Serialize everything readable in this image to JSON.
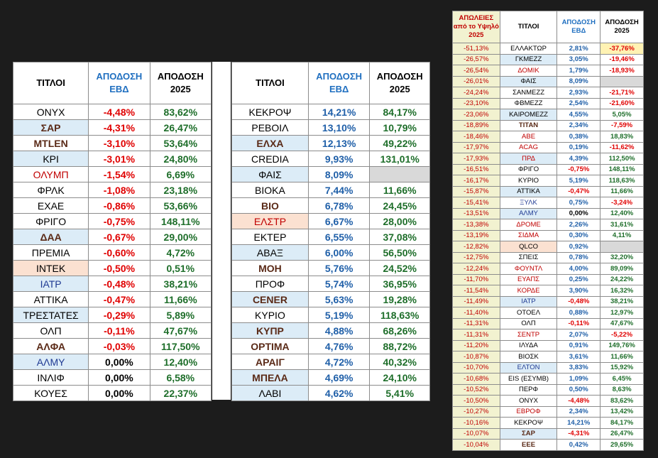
{
  "colors": {
    "background": "#1c1c1c",
    "header_blue": "#1f6fc0",
    "negative": "#e00000",
    "positive_green": "#1e6e2a",
    "positive_blue": "#1f5fa8",
    "row_blue": "#dcecf7",
    "row_peach": "#fbe1d1",
    "empty_grey": "#d9d9d9"
  },
  "left_table": {
    "headers": [
      "ΤΙΤΛΟΙ",
      "ΑΠΟΔΟΣΗ ΕΒΔ",
      "ΑΠΟΔΟΣΗ 2025"
    ],
    "rows": [
      {
        "name": "ΟΝΥΧ",
        "style": "plain",
        "wk": "-4,48%",
        "wk_style": "neg",
        "ytd": "83,62%"
      },
      {
        "name": "ΣΑΡ",
        "style": "boldblue",
        "wk": "-4,31%",
        "wk_style": "neg",
        "ytd": "26,47%"
      },
      {
        "name": "ΜΤLΕΝ",
        "style": "bold",
        "wk": "-3,10%",
        "wk_style": "neg",
        "ytd": "53,64%"
      },
      {
        "name": "ΚΡΙ",
        "style": "blue",
        "wk": "-3,01%",
        "wk_style": "neg",
        "ytd": "24,80%"
      },
      {
        "name": "ΟΛΥΜΠ",
        "style": "red",
        "wk": "-1,54%",
        "wk_style": "neg",
        "ytd": "6,69%"
      },
      {
        "name": "ΦΡΛΚ",
        "style": "plain",
        "wk": "-1,08%",
        "wk_style": "neg",
        "ytd": "23,18%"
      },
      {
        "name": "ΕΧΑΕ",
        "style": "plain",
        "wk": "-0,86%",
        "wk_style": "neg",
        "ytd": "53,66%"
      },
      {
        "name": "ΦΡΙΓΟ",
        "style": "plain",
        "wk": "-0,75%",
        "wk_style": "neg",
        "ytd": "148,11%"
      },
      {
        "name": "ΔΑΑ",
        "style": "boldblue",
        "wk": "-0,67%",
        "wk_style": "neg",
        "ytd": "29,00%"
      },
      {
        "name": "ΠΡΕΜΙΑ",
        "style": "plain",
        "wk": "-0,60%",
        "wk_style": "neg",
        "ytd": "4,72%"
      },
      {
        "name": "ΙΝΤΕΚ",
        "style": "peach",
        "wk": "-0,50%",
        "wk_style": "neg",
        "ytd": "0,51%"
      },
      {
        "name": "ΙΑΤΡ",
        "style": "bluetextblue",
        "wk": "-0,48%",
        "wk_style": "neg",
        "ytd": "38,21%"
      },
      {
        "name": "ΑΤΤΙΚΑ",
        "style": "plain",
        "wk": "-0,47%",
        "wk_style": "neg",
        "ytd": "11,66%"
      },
      {
        "name": "ΤΡΕΣΤΑΤΕΣ",
        "style": "blue",
        "wk": "-0,29%",
        "wk_style": "neg",
        "ytd": "5,89%"
      },
      {
        "name": "ΟΛΠ",
        "style": "plain",
        "wk": "-0,11%",
        "wk_style": "neg",
        "ytd": "47,67%"
      },
      {
        "name": "ΑΛΦΑ",
        "style": "bold",
        "wk": "-0,03%",
        "wk_style": "neg",
        "ytd": "117,50%"
      },
      {
        "name": "ΑΛΜΥ",
        "style": "bluetextblue",
        "wk": "0,00%",
        "wk_style": "zero",
        "ytd": "12,40%"
      },
      {
        "name": "ΙΝΛΙΦ",
        "style": "plain",
        "wk": "0,00%",
        "wk_style": "zero",
        "ytd": "6,58%"
      },
      {
        "name": "ΚΟΥΕΣ",
        "style": "plain",
        "wk": "0,00%",
        "wk_style": "zero",
        "ytd": "22,37%"
      }
    ]
  },
  "mid_table": {
    "headers": [
      "ΤΙΤΛΟΙ",
      "ΑΠΟΔΟΣΗ ΕΒΔ",
      "ΑΠΟΔΟΣΗ 2025"
    ],
    "rows": [
      {
        "name": "ΚΕΚΡΟΨ",
        "style": "plain",
        "wk": "14,21%",
        "ytd": "84,17%"
      },
      {
        "name": "ΡΕΒΟΙΛ",
        "style": "plain",
        "wk": "13,10%",
        "ytd": "10,79%"
      },
      {
        "name": "ΕΛΧΑ",
        "style": "boldblue",
        "wk": "12,13%",
        "ytd": "49,22%"
      },
      {
        "name": "CREDIA",
        "style": "plain",
        "wk": "9,93%",
        "ytd": "131,01%"
      },
      {
        "name": "ΦΑΙΣ",
        "style": "blue",
        "wk": "8,09%",
        "ytd": ""
      },
      {
        "name": "ΒΙΟΚΑ",
        "style": "plain",
        "wk": "7,44%",
        "ytd": "11,66%"
      },
      {
        "name": "ΒΙΟ",
        "style": "bold",
        "wk": "6,78%",
        "ytd": "24,45%"
      },
      {
        "name": "ΕΛΣΤΡ",
        "style": "redpeach",
        "wk": "6,67%",
        "ytd": "28,00%"
      },
      {
        "name": "ΕΚΤΕΡ",
        "style": "plain",
        "wk": "6,55%",
        "ytd": "37,08%"
      },
      {
        "name": "ΑΒΑΞ",
        "style": "blue",
        "wk": "6,00%",
        "ytd": "56,50%"
      },
      {
        "name": "ΜΟΗ",
        "style": "bold",
        "wk": "5,76%",
        "ytd": "24,52%"
      },
      {
        "name": "ΠΡΟΦ",
        "style": "plain",
        "wk": "5,74%",
        "ytd": "36,95%"
      },
      {
        "name": "CENER",
        "style": "boldblue",
        "wk": "5,63%",
        "ytd": "19,28%"
      },
      {
        "name": "ΚΥΡΙΟ",
        "style": "plain",
        "wk": "5,19%",
        "ytd": "118,63%"
      },
      {
        "name": "ΚΥΠΡ",
        "style": "boldblue",
        "wk": "4,88%",
        "ytd": "68,26%"
      },
      {
        "name": "ΟΡΤΙΜΑ",
        "style": "bold",
        "wk": "4,76%",
        "ytd": "88,72%"
      },
      {
        "name": "ΑΡΑΙΓ",
        "style": "bold",
        "wk": "4,72%",
        "ytd": "40,32%"
      },
      {
        "name": "ΜΠΕΛΑ",
        "style": "boldblue",
        "wk": "4,69%",
        "ytd": "24,10%"
      },
      {
        "name": "ΛΑΒΙ",
        "style": "blue",
        "wk": "4,62%",
        "ytd": "5,41%"
      }
    ]
  },
  "right_table": {
    "headers": [
      "ΑΠΩΛΕΙΕΣ από το Υψηλό 2025",
      "ΤΙΤΛΟΙ",
      "ΑΠΟΔΟΣΗ ΕΒΔ",
      "ΑΠΟΔΟΣΗ 2025"
    ],
    "rows": [
      {
        "loss": "-51,13%",
        "name": "ΕΛΛΑΚΤΩΡ",
        "style": "plain",
        "wk": "2,81%",
        "ytd": "-37,76%",
        "ytd_hi": true
      },
      {
        "loss": "-26,57%",
        "name": "ΓΚΜΕΖΖ",
        "style": "blue",
        "wk": "3,05%",
        "ytd": "-19,46%"
      },
      {
        "loss": "-26,54%",
        "name": "ΔΟΜΙΚ",
        "style": "red",
        "wk": "1,79%",
        "ytd": "-18,93%"
      },
      {
        "loss": "-26,01%",
        "name": "ΦΑΙΣ",
        "style": "blue",
        "wk": "8,09%",
        "ytd": ""
      },
      {
        "loss": "-24,24%",
        "name": "ΣΑΝΜΕΖΖ",
        "style": "plain",
        "wk": "2,93%",
        "ytd": "-21,71%"
      },
      {
        "loss": "-23,10%",
        "name": "ΦΒΜΕΖΖ",
        "style": "plain",
        "wk": "2,54%",
        "ytd": "-21,60%"
      },
      {
        "loss": "-23,06%",
        "name": "ΚΑΙΡΟΜΕΖΖ",
        "style": "blue",
        "wk": "4,55%",
        "ytd": "5,05%"
      },
      {
        "loss": "-18,89%",
        "name": "ΤΙΤΑΝ",
        "style": "bold",
        "wk": "2,34%",
        "ytd": "-7,59%"
      },
      {
        "loss": "-18,46%",
        "name": "ΑΒΕ",
        "style": "red",
        "wk": "0,38%",
        "ytd": "18,83%"
      },
      {
        "loss": "-17,97%",
        "name": "ACAG",
        "style": "red",
        "wk": "0,19%",
        "ytd": "-11,62%"
      },
      {
        "loss": "-17,93%",
        "name": "ΠΡΔ",
        "style": "redblue",
        "wk": "4,39%",
        "ytd": "112,50%"
      },
      {
        "loss": "-16,51%",
        "name": "ΦΡΙΓΟ",
        "style": "plain",
        "wk": "-0,75%",
        "ytd": "148,11%"
      },
      {
        "loss": "-16,17%",
        "name": "ΚΥΡΙΟ",
        "style": "plain",
        "wk": "5,19%",
        "ytd": "118,63%"
      },
      {
        "loss": "-15,87%",
        "name": "ΑΤΤΙΚΑ",
        "style": "blue",
        "wk": "-0,47%",
        "ytd": "11,66%"
      },
      {
        "loss": "-15,41%",
        "name": "ΞΥΛΚ",
        "style": "bluetext",
        "wk": "0,75%",
        "ytd": "-3,24%"
      },
      {
        "loss": "-13,51%",
        "name": "ΑΛΜΥ",
        "style": "bluetextblue",
        "wk": "0,00%",
        "ytd": "12,40%"
      },
      {
        "loss": "-13,38%",
        "name": "ΔΡΟΜΕ",
        "style": "red",
        "wk": "2,26%",
        "ytd": "31,61%"
      },
      {
        "loss": "-13,19%",
        "name": "ΣΙΔΜΑ",
        "style": "red",
        "wk": "0,30%",
        "ytd": "4,11%"
      },
      {
        "loss": "-12,82%",
        "name": "QLCO",
        "style": "peach",
        "wk": "0,92%",
        "ytd": ""
      },
      {
        "loss": "-12,75%",
        "name": "ΣΠΕΙΣ",
        "style": "plain",
        "wk": "0,78%",
        "ytd": "32,20%"
      },
      {
        "loss": "-12,24%",
        "name": "ΦΟΥΝΤΛ",
        "style": "red",
        "wk": "4,00%",
        "ytd": "89,09%"
      },
      {
        "loss": "-11,70%",
        "name": "ΕΥΑΠΣ",
        "style": "red",
        "wk": "0,25%",
        "ytd": "24,22%"
      },
      {
        "loss": "-11,54%",
        "name": "ΚΟΡΔΕ",
        "style": "red",
        "wk": "3,90%",
        "ytd": "16,32%"
      },
      {
        "loss": "-11,49%",
        "name": "ΙΑΤΡ",
        "style": "bluetextblue",
        "wk": "-0,48%",
        "ytd": "38,21%"
      },
      {
        "loss": "-11,40%",
        "name": "ΟΤΟΕΛ",
        "style": "plain",
        "wk": "0,88%",
        "ytd": "12,97%"
      },
      {
        "loss": "-11,31%",
        "name": "ΟΛΠ",
        "style": "plain",
        "wk": "-0,11%",
        "ytd": "47,67%"
      },
      {
        "loss": "-11,31%",
        "name": "ΣΕΝΤΡ",
        "style": "red",
        "wk": "2,07%",
        "ytd": "-5,22%"
      },
      {
        "loss": "-11,20%",
        "name": "ΙΛΥΔΑ",
        "style": "plain",
        "wk": "0,91%",
        "ytd": "149,76%"
      },
      {
        "loss": "-10,87%",
        "name": "ΒΙΟΣΚ",
        "style": "plain",
        "wk": "3,61%",
        "ytd": "11,66%"
      },
      {
        "loss": "-10,70%",
        "name": "ΕΛΤΟΝ",
        "style": "bluetextblue",
        "wk": "3,83%",
        "ytd": "15,92%"
      },
      {
        "loss": "-10,68%",
        "name": "EIS (ΕΣΥΜΒ)",
        "style": "plain",
        "wk": "1,09%",
        "ytd": "6,45%"
      },
      {
        "loss": "-10,52%",
        "name": "ΠΕΡΦ",
        "style": "plain",
        "wk": "0,50%",
        "ytd": "8,63%"
      },
      {
        "loss": "-10,50%",
        "name": "ΟΝΥΧ",
        "style": "plain",
        "wk": "-4,48%",
        "ytd": "83,62%"
      },
      {
        "loss": "-10,27%",
        "name": "ΕΒΡΟΦ",
        "style": "red",
        "wk": "2,34%",
        "ytd": "13,42%"
      },
      {
        "loss": "-10,16%",
        "name": "ΚΕΚΡΟΨ",
        "style": "plain",
        "wk": "14,21%",
        "ytd": "84,17%"
      },
      {
        "loss": "-10,07%",
        "name": "ΣΑΡ",
        "style": "boldblue",
        "wk": "-4,31%",
        "ytd": "26,47%"
      },
      {
        "loss": "-10,04%",
        "name": "ΕΕΕ",
        "style": "bold",
        "wk": "0,42%",
        "ytd": "29,65%"
      }
    ]
  }
}
